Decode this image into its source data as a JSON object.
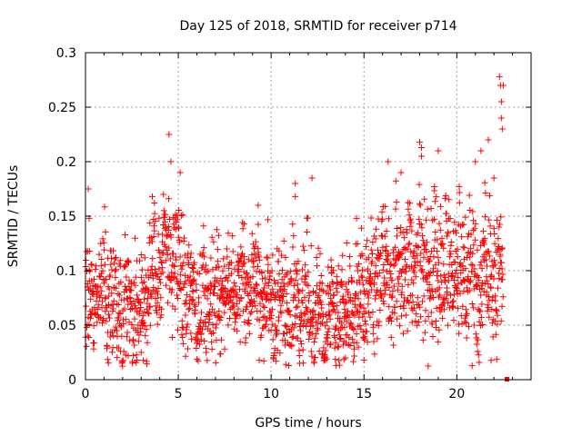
{
  "chart_data": {
    "type": "scatter",
    "title": "Day 125 of 2018, SRMTID for receiver p714",
    "xlabel": "GPS time / hours",
    "ylabel": "SRMTID / TECUs",
    "xlim": [
      0,
      24
    ],
    "ylim": [
      0,
      0.3
    ],
    "xticks": [
      0,
      5,
      10,
      15,
      20
    ],
    "xtick_labels": [
      "0",
      "5",
      "10",
      "15",
      "20"
    ],
    "yticks": [
      0,
      0.05,
      0.1,
      0.15,
      0.2,
      0.25,
      0.3
    ],
    "ytick_labels": [
      "0",
      "0.05",
      "0.1",
      "0.15",
      "0.2",
      "0.25",
      "0.3"
    ],
    "grid": true,
    "marker": "plus",
    "color": "#ff0000",
    "trend": [
      {
        "x": 0.0,
        "y": 0.075
      },
      {
        "x": 1.0,
        "y": 0.08
      },
      {
        "x": 2.0,
        "y": 0.058
      },
      {
        "x": 3.0,
        "y": 0.062
      },
      {
        "x": 4.0,
        "y": 0.11
      },
      {
        "x": 4.6,
        "y": 0.115
      },
      {
        "x": 5.0,
        "y": 0.095
      },
      {
        "x": 6.0,
        "y": 0.075
      },
      {
        "x": 7.0,
        "y": 0.078
      },
      {
        "x": 8.0,
        "y": 0.085
      },
      {
        "x": 9.0,
        "y": 0.09
      },
      {
        "x": 10.0,
        "y": 0.068
      },
      {
        "x": 11.0,
        "y": 0.072
      },
      {
        "x": 12.0,
        "y": 0.065
      },
      {
        "x": 13.0,
        "y": 0.06
      },
      {
        "x": 14.0,
        "y": 0.062
      },
      {
        "x": 15.0,
        "y": 0.078
      },
      {
        "x": 16.0,
        "y": 0.1
      },
      {
        "x": 17.0,
        "y": 0.105
      },
      {
        "x": 18.0,
        "y": 0.1
      },
      {
        "x": 19.0,
        "y": 0.1
      },
      {
        "x": 20.0,
        "y": 0.105
      },
      {
        "x": 21.0,
        "y": 0.095
      },
      {
        "x": 22.0,
        "y": 0.1
      }
    ],
    "spread": 0.025,
    "x_data_end": 22.5,
    "num_points": 1900,
    "highlights": [
      {
        "x": 0.15,
        "y": 0.175
      },
      {
        "x": 0.2,
        "y": 0.148
      },
      {
        "x": 4.5,
        "y": 0.225
      },
      {
        "x": 4.6,
        "y": 0.2
      },
      {
        "x": 5.1,
        "y": 0.19
      },
      {
        "x": 3.6,
        "y": 0.168
      },
      {
        "x": 4.2,
        "y": 0.17
      },
      {
        "x": 9.3,
        "y": 0.16
      },
      {
        "x": 11.3,
        "y": 0.18
      },
      {
        "x": 11.3,
        "y": 0.168
      },
      {
        "x": 12.2,
        "y": 0.185
      },
      {
        "x": 14.6,
        "y": 0.148
      },
      {
        "x": 16.3,
        "y": 0.2
      },
      {
        "x": 17.0,
        "y": 0.19
      },
      {
        "x": 18.0,
        "y": 0.218
      },
      {
        "x": 18.1,
        "y": 0.205
      },
      {
        "x": 19.0,
        "y": 0.21
      },
      {
        "x": 21.0,
        "y": 0.2
      },
      {
        "x": 21.3,
        "y": 0.21
      },
      {
        "x": 21.7,
        "y": 0.22
      },
      {
        "x": 22.0,
        "y": 0.185
      },
      {
        "x": 22.3,
        "y": 0.278
      },
      {
        "x": 22.35,
        "y": 0.27
      },
      {
        "x": 22.4,
        "y": 0.255
      },
      {
        "x": 22.4,
        "y": 0.24
      },
      {
        "x": 22.45,
        "y": 0.23
      },
      {
        "x": 22.5,
        "y": 0.27
      },
      {
        "x": 2.3,
        "y": 0.022
      },
      {
        "x": 3.0,
        "y": 0.025
      },
      {
        "x": 6.5,
        "y": 0.025
      },
      {
        "x": 13.5,
        "y": 0.013
      },
      {
        "x": 14.0,
        "y": 0.02
      },
      {
        "x": 15.0,
        "y": 0.018
      }
    ],
    "end_marker": {
      "x": 22.7,
      "y": 0.0
    }
  }
}
